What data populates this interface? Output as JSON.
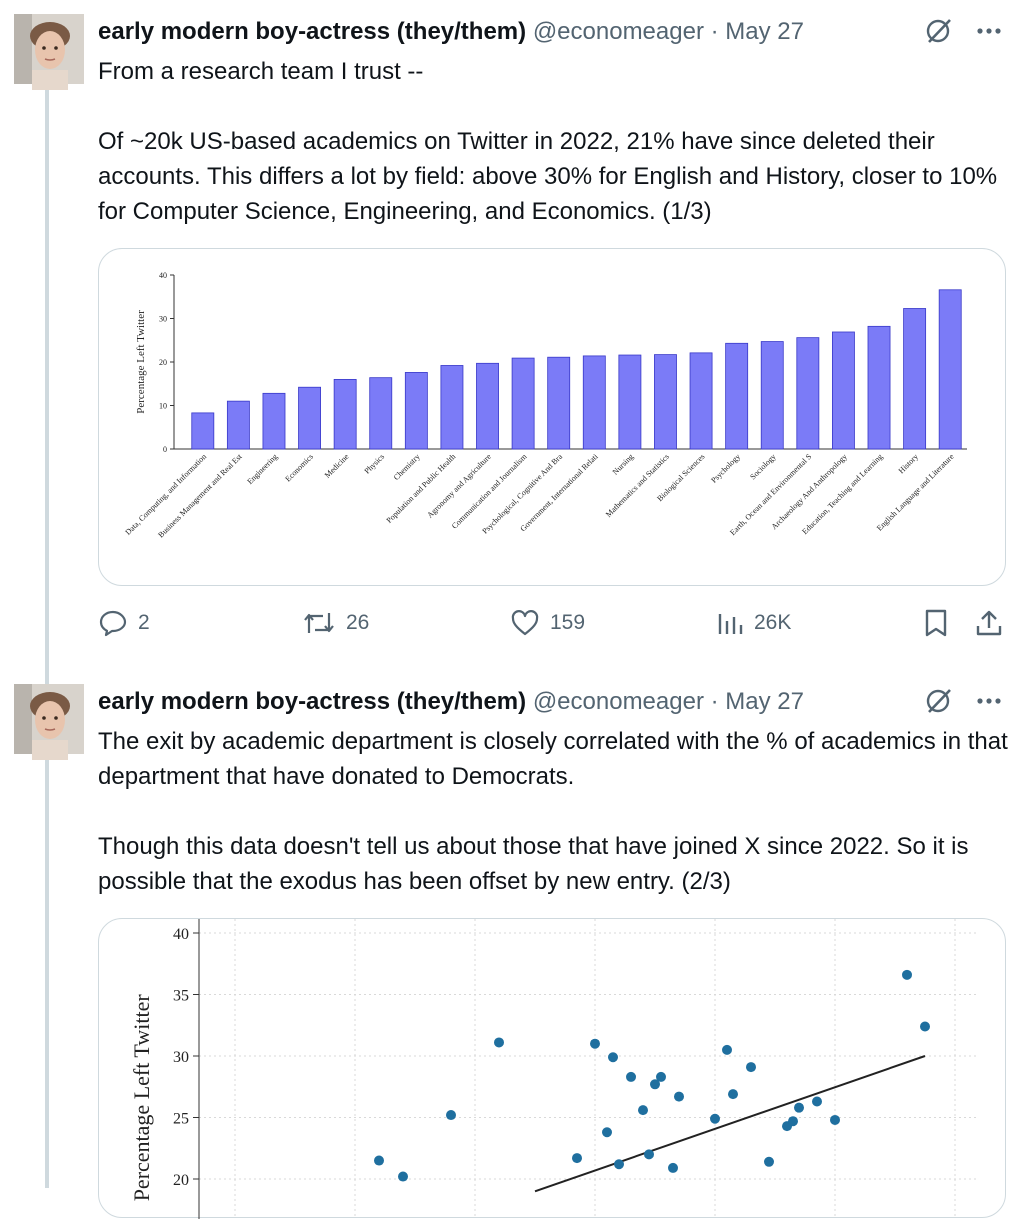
{
  "tweets": [
    {
      "author": {
        "name": "early modern boy-actress (they/them)",
        "handle": "@economeager",
        "separator": "·",
        "date": "May 27"
      },
      "text": [
        "From a research team I trust --",
        "Of ~20k US-based academics on Twitter in 2022, 21% have since deleted their accounts. This differs a lot by field: above 30% for English and History, closer to 10% for Computer Science, Engineering, and Economics. (1/3)"
      ],
      "stats": {
        "replies": "2",
        "reposts": "26",
        "likes": "159",
        "views": "26K"
      },
      "icons": {
        "grok": "grok-icon",
        "more": "more-icon",
        "reply": "reply-icon",
        "repost": "repost-icon",
        "like": "heart-icon",
        "views": "views-icon",
        "bookmark": "bookmark-icon",
        "share": "share-icon"
      }
    },
    {
      "author": {
        "name": "early modern boy-actress (they/them)",
        "handle": "@economeager",
        "separator": "·",
        "date": "May 27"
      },
      "text": [
        "The exit by academic department is closely correlated with the % of academics in that department that have donated to Democrats.",
        "Though this data doesn't tell us about those that have joined X since 2022. So it is possible that the exodus has been offset by new entry. (2/3)"
      ]
    }
  ],
  "chart_data": [
    {
      "type": "bar",
      "ylabel": "Percentage Left Twitter",
      "ylim": [
        0,
        40
      ],
      "yticks": [
        "0",
        "10",
        "20",
        "30",
        "40"
      ],
      "bar_color": "#7b7bf7",
      "categories": [
        "Data, Computing, and Information",
        "Business Management and Real Est",
        "Engineering",
        "Economics",
        "Medicine",
        "Physics",
        "Chemistry",
        "Population and Public Health",
        "Agronomy and Agriculture",
        "Communication and Journalism",
        "Psychological, Cognitive And Bra",
        "Government, International Relati",
        "Nursing",
        "Mathematics and Statistics",
        "Biological Sciences",
        "Psychology",
        "Sociology",
        "Earth, Ocean and Environmental S",
        "Archaeology And Anthropology",
        "Education, Teaching and Learning",
        "History",
        "English Language and Literature"
      ],
      "values": [
        8.3,
        11.0,
        12.8,
        14.2,
        16.0,
        16.4,
        17.6,
        19.2,
        19.7,
        20.9,
        21.1,
        21.4,
        21.6,
        21.7,
        22.1,
        24.3,
        24.7,
        25.6,
        26.9,
        28.2,
        32.3,
        36.6
      ]
    },
    {
      "type": "scatter",
      "ylabel": "Percentage Left Twitter",
      "ylim": [
        0,
        40
      ],
      "yticks": [
        "40",
        "35",
        "30",
        "25",
        "20"
      ],
      "point_color": "#1f6f9f",
      "x": [
        0.42,
        0.44,
        0.48,
        0.52,
        0.585,
        0.6,
        0.61,
        0.615,
        0.62,
        0.63,
        0.64,
        0.645,
        0.65,
        0.655,
        0.665,
        0.67,
        0.7,
        0.71,
        0.715,
        0.73,
        0.745,
        0.76,
        0.765,
        0.77,
        0.785,
        0.8,
        0.86,
        0.875
      ],
      "y": [
        21.5,
        20.2,
        25.2,
        31.1,
        21.7,
        31.0,
        23.8,
        29.9,
        21.2,
        28.3,
        25.6,
        22.0,
        27.7,
        28.3,
        20.9,
        26.7,
        24.9,
        30.5,
        26.9,
        29.1,
        21.4,
        24.3,
        24.7,
        25.8,
        26.3,
        24.8,
        36.6,
        32.4
      ],
      "trend": {
        "x": [
          0.55,
          0.875
        ],
        "y": [
          19.0,
          30.0
        ]
      }
    }
  ]
}
